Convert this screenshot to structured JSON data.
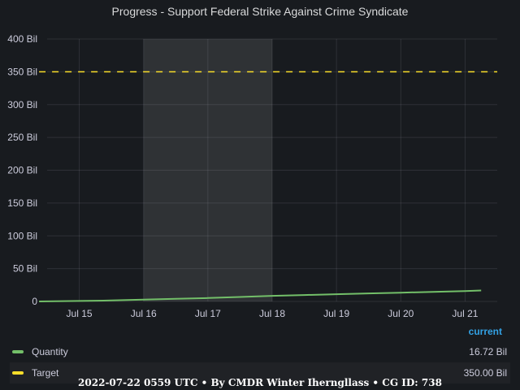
{
  "panel": {
    "title": "Progress - Support Federal Strike Against Crime Syndicate"
  },
  "chart_data": {
    "type": "line",
    "title": "Progress - Support Federal Strike Against Crime Syndicate",
    "x_ticks": [
      "Jul 15",
      "Jul 16",
      "Jul 17",
      "Jul 18",
      "Jul 19",
      "Jul 20",
      "Jul 21"
    ],
    "xlim": [
      "2022-07-14 12:00",
      "2022-07-21 12:00"
    ],
    "y_ticks": [
      "0",
      "50 Bil",
      "100 Bil",
      "150 Bil",
      "200 Bil",
      "250 Bil",
      "300 Bil",
      "350 Bil",
      "400 Bil"
    ],
    "ylim": [
      0,
      400
    ],
    "y_unit": "Bil",
    "grid": true,
    "highlight_region": [
      "2022-07-16",
      "2022-07-18"
    ],
    "series": [
      {
        "name": "Quantity",
        "color": "#73bf69",
        "x": [
          "2022-07-14 09:00",
          "2022-07-15 00:00",
          "2022-07-15 12:00",
          "2022-07-16 00:00",
          "2022-07-16 12:00",
          "2022-07-17 00:00",
          "2022-07-17 12:00",
          "2022-07-18 00:00",
          "2022-07-18 12:00",
          "2022-07-19 00:00",
          "2022-07-19 12:00",
          "2022-07-20 00:00",
          "2022-07-20 12:00",
          "2022-07-21 00:00",
          "2022-07-21 06:00"
        ],
        "values": [
          0.0,
          0.7,
          1.5,
          2.8,
          4.0,
          5.2,
          6.8,
          8.6,
          9.8,
          11.0,
          12.2,
          13.4,
          14.6,
          15.8,
          16.72
        ]
      },
      {
        "name": "Target",
        "color": "#fade2a",
        "dashed": true,
        "x": [
          "2022-07-14 09:00",
          "2022-07-21 12:00"
        ],
        "values": [
          350,
          350
        ]
      }
    ],
    "legend": {
      "placement": "bottom",
      "header": "current",
      "entries": [
        {
          "name": "Quantity",
          "value": "16.72 Bil",
          "color": "#73bf69"
        },
        {
          "name": "Target",
          "value": "350.00 Bil",
          "color": "#fade2a"
        }
      ]
    }
  },
  "footer": {
    "text": "2022-07-22 0559 UTC • By CMDR Winter Iherngllass • CG ID: 738"
  }
}
